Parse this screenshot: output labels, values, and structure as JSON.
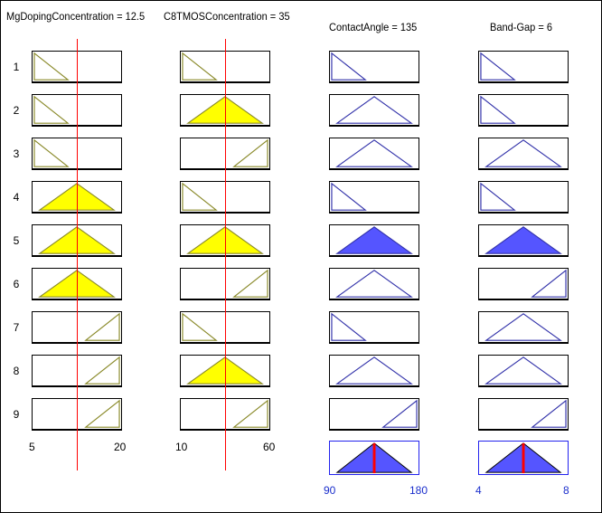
{
  "inputs": [
    {
      "title": "MgDopingConcentration = 12.5",
      "value": 12.5,
      "range": [
        5,
        20
      ],
      "range_labels": [
        "5",
        "20"
      ],
      "rule_shapes": [
        "left",
        "left",
        "left",
        "mid",
        "mid",
        "mid",
        "right",
        "right",
        "right"
      ],
      "rule_fill": [
        0,
        0,
        0,
        1,
        1,
        1,
        0,
        0,
        0
      ]
    },
    {
      "title": "C8TMOSConcentration = 35",
      "value": 35,
      "range": [
        10,
        60
      ],
      "range_labels": [
        "10",
        "60"
      ],
      "rule_shapes": [
        "left",
        "mid",
        "right",
        "left",
        "mid",
        "right",
        "left",
        "mid",
        "right"
      ],
      "rule_fill": [
        0,
        1,
        0,
        0,
        1,
        0,
        0,
        1,
        0
      ]
    }
  ],
  "outputs": [
    {
      "title": "ContactAngle = 135",
      "value": 135,
      "range": [
        90,
        180
      ],
      "range_labels": [
        "90",
        "180"
      ],
      "rule_shapes": [
        "left",
        "mid",
        "mid",
        "left",
        "mid",
        "mid",
        "left",
        "mid",
        "right"
      ],
      "rule_fill": [
        0,
        0,
        0,
        0,
        1,
        0,
        0,
        0,
        0
      ]
    },
    {
      "title": "Band-Gap = 6",
      "value": 6,
      "range": [
        4,
        8
      ],
      "range_labels": [
        "4",
        "8"
      ],
      "rule_shapes": [
        "left",
        "left",
        "mid",
        "left",
        "mid",
        "right",
        "mid",
        "mid",
        "right"
      ],
      "rule_fill": [
        0,
        0,
        0,
        0,
        1,
        0,
        0,
        0,
        0
      ]
    }
  ],
  "rule_numbers": [
    "1",
    "2",
    "3",
    "4",
    "5",
    "6",
    "7",
    "8",
    "9"
  ],
  "colors": {
    "input_line": "#8a8a2a",
    "input_fill": "#ffff00",
    "output_line": "#3333aa",
    "output_fill": "#5555ff",
    "crosshair": "#ff0000",
    "output_tick_text": "#1a2ecc"
  }
}
